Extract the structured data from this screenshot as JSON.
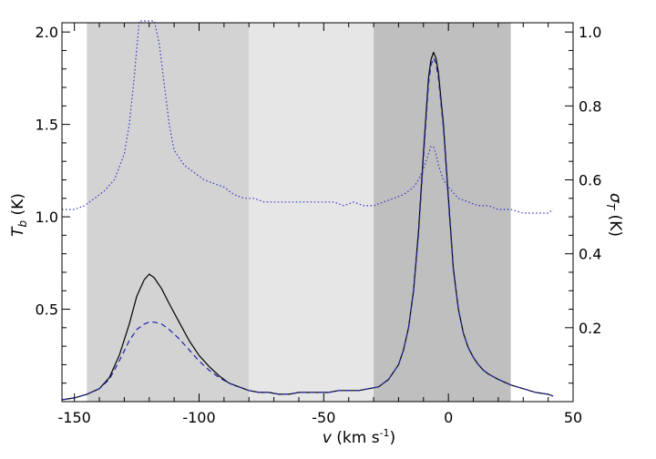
{
  "chart_data": {
    "type": "line",
    "title": "",
    "xlabel": {
      "var": "v",
      "text": " (km s",
      "sup": "-1",
      "close": ")"
    },
    "ylabel_left": {
      "var": "T",
      "sub": "b",
      "unit": " (K)"
    },
    "ylabel_right": {
      "var": "σ",
      "sub": "T",
      "unit": " (K)"
    },
    "xlim": [
      -155,
      50
    ],
    "ylim_left": [
      0,
      2.05
    ],
    "ylim_right": [
      0,
      1.025
    ],
    "x_ticks": [
      -150,
      -100,
      -50,
      0,
      50
    ],
    "x_tick_labels": [
      "-150",
      "-100",
      "-50",
      "0",
      "50"
    ],
    "y_left_ticks": [
      0.5,
      1.0,
      1.5,
      2.0
    ],
    "y_left_tick_labels": [
      "0.5",
      "1.0",
      "1.5",
      "2.0"
    ],
    "y_right_ticks": [
      0.2,
      0.4,
      0.6,
      0.8,
      1.0
    ],
    "y_right_tick_labels": [
      "0.2",
      "0.4",
      "0.6",
      "0.8",
      "1.0"
    ],
    "shaded_regions": [
      {
        "x0": -145,
        "x1": -80,
        "color": "#d3d3d3"
      },
      {
        "x0": -80,
        "x1": -30,
        "color": "#e6e6e6"
      },
      {
        "x0": -30,
        "x1": 25,
        "color": "#bfbfbf"
      }
    ],
    "series": [
      {
        "style": "solid",
        "color": "#000000",
        "axis": "left",
        "x": [
          -155,
          -150,
          -145,
          -140,
          -136,
          -132,
          -128,
          -125,
          -122,
          -120,
          -118,
          -115,
          -112,
          -108,
          -104,
          -100,
          -96,
          -92,
          -88,
          -84,
          -80,
          -76,
          -72,
          -68,
          -64,
          -60,
          -56,
          -52,
          -48,
          -44,
          -40,
          -36,
          -32,
          -28,
          -24,
          -20,
          -18,
          -16,
          -14,
          -12,
          -10,
          -8,
          -7,
          -6,
          -5,
          -4,
          -2,
          0,
          2,
          4,
          6,
          8,
          10,
          12,
          14,
          16,
          20,
          25,
          30,
          35,
          40,
          42
        ],
        "y": [
          0.01,
          0.02,
          0.04,
          0.07,
          0.13,
          0.25,
          0.42,
          0.57,
          0.66,
          0.69,
          0.67,
          0.61,
          0.53,
          0.43,
          0.33,
          0.25,
          0.19,
          0.14,
          0.1,
          0.08,
          0.06,
          0.05,
          0.05,
          0.04,
          0.04,
          0.05,
          0.05,
          0.05,
          0.05,
          0.06,
          0.06,
          0.06,
          0.07,
          0.08,
          0.12,
          0.2,
          0.28,
          0.4,
          0.6,
          0.92,
          1.35,
          1.75,
          1.85,
          1.89,
          1.86,
          1.78,
          1.5,
          1.1,
          0.72,
          0.5,
          0.37,
          0.29,
          0.24,
          0.2,
          0.17,
          0.15,
          0.12,
          0.09,
          0.07,
          0.05,
          0.04,
          0.03
        ]
      },
      {
        "style": "dashed",
        "color": "#2222aa",
        "axis": "left",
        "x": [
          -155,
          -150,
          -145,
          -140,
          -136,
          -132,
          -128,
          -125,
          -122,
          -120,
          -118,
          -115,
          -112,
          -108,
          -104,
          -100,
          -96,
          -92,
          -88,
          -84,
          -80,
          -76,
          -72,
          -68,
          -64,
          -60,
          -56,
          -52,
          -48,
          -44,
          -40,
          -36,
          -32,
          -28,
          -24,
          -20,
          -18,
          -16,
          -14,
          -12,
          -10,
          -8,
          -7,
          -6,
          -5,
          -4,
          -2,
          0,
          2,
          4,
          6,
          8,
          10,
          12,
          14,
          16,
          20,
          25,
          30,
          35,
          40,
          42
        ],
        "y": [
          0.01,
          0.02,
          0.04,
          0.07,
          0.12,
          0.22,
          0.33,
          0.39,
          0.42,
          0.43,
          0.43,
          0.42,
          0.39,
          0.34,
          0.28,
          0.22,
          0.17,
          0.13,
          0.1,
          0.08,
          0.06,
          0.05,
          0.05,
          0.04,
          0.04,
          0.05,
          0.05,
          0.05,
          0.05,
          0.06,
          0.06,
          0.06,
          0.07,
          0.08,
          0.12,
          0.2,
          0.28,
          0.4,
          0.6,
          0.9,
          1.32,
          1.72,
          1.82,
          1.86,
          1.83,
          1.75,
          1.48,
          1.08,
          0.71,
          0.5,
          0.37,
          0.29,
          0.24,
          0.2,
          0.17,
          0.15,
          0.12,
          0.09,
          0.07,
          0.05,
          0.04,
          0.03
        ]
      },
      {
        "style": "dotted",
        "color": "#3333cc",
        "axis": "right",
        "x": [
          -155,
          -150,
          -146,
          -142,
          -138,
          -134,
          -130,
          -128,
          -126,
          -124,
          -122,
          -120,
          -118,
          -116,
          -114,
          -112,
          -110,
          -106,
          -102,
          -98,
          -94,
          -90,
          -86,
          -82,
          -78,
          -74,
          -70,
          -66,
          -62,
          -58,
          -54,
          -50,
          -46,
          -42,
          -38,
          -34,
          -30,
          -26,
          -22,
          -18,
          -14,
          -12,
          -10,
          -8,
          -7,
          -6,
          -5,
          -4,
          -2,
          0,
          4,
          8,
          12,
          16,
          20,
          25,
          30,
          35,
          40,
          42
        ],
        "y": [
          0.52,
          0.52,
          0.53,
          0.55,
          0.57,
          0.6,
          0.67,
          0.75,
          0.88,
          1.04,
          1.08,
          1.06,
          1.04,
          0.97,
          0.86,
          0.75,
          0.68,
          0.64,
          0.62,
          0.6,
          0.59,
          0.58,
          0.56,
          0.55,
          0.55,
          0.54,
          0.54,
          0.54,
          0.54,
          0.54,
          0.54,
          0.54,
          0.54,
          0.53,
          0.54,
          0.53,
          0.53,
          0.54,
          0.55,
          0.56,
          0.58,
          0.6,
          0.63,
          0.67,
          0.69,
          0.69,
          0.67,
          0.64,
          0.6,
          0.58,
          0.55,
          0.54,
          0.53,
          0.53,
          0.52,
          0.52,
          0.51,
          0.51,
          0.51,
          0.52
        ]
      }
    ],
    "grid": false,
    "legend": "none"
  }
}
